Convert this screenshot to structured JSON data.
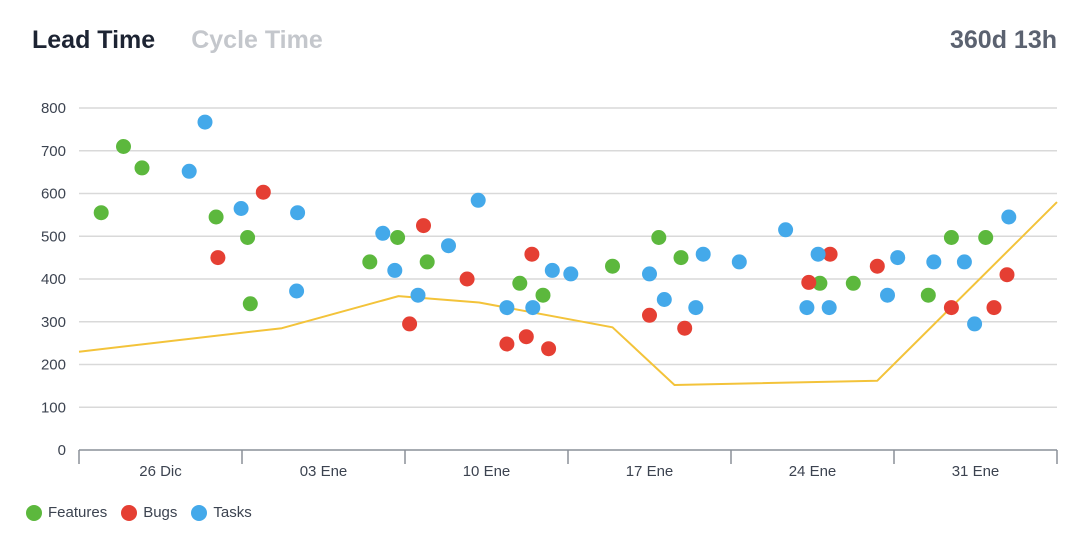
{
  "header": {
    "tabs": [
      {
        "label": "Lead Time",
        "active": true
      },
      {
        "label": "Cycle Time",
        "active": false
      }
    ],
    "total": "360d 13h"
  },
  "colors": {
    "features": "#5cb83d",
    "bugs": "#e53f33",
    "tasks": "#44a9ea",
    "trend": "#f3c33a",
    "grid": "#d9d9d9"
  },
  "legend": [
    {
      "label": "Features",
      "color": "#5cb83d"
    },
    {
      "label": "Bugs",
      "color": "#e53f33"
    },
    {
      "label": "Tasks",
      "color": "#44a9ea"
    }
  ],
  "chart_data": {
    "type": "scatter",
    "x_axis": {
      "type": "date",
      "min": "2023-12-22",
      "max": "2024-02-04",
      "ticks": [
        "26 Dic",
        "03 Ene",
        "10 Ene",
        "17 Ene",
        "24 Ene",
        "31 Ene"
      ]
    },
    "y_axis": {
      "min": 0,
      "max": 800,
      "ticks": [
        0,
        100,
        200,
        300,
        400,
        500,
        600,
        700,
        800
      ]
    },
    "grid": true,
    "legend_position": "bottom-left",
    "series": [
      {
        "name": "Features",
        "color": "#5cb83d",
        "points": [
          [
            "2023-12-23T00:00",
            555
          ],
          [
            "2023-12-24T00:00",
            710
          ],
          [
            "2023-12-24T20:00",
            660
          ],
          [
            "2023-12-28T04:00",
            545
          ],
          [
            "2023-12-29T14:00",
            497
          ],
          [
            "2023-12-29T17:00",
            342
          ],
          [
            "2024-01-04T02:00",
            440
          ],
          [
            "2024-01-05T08:00",
            497
          ],
          [
            "2024-01-06T16:00",
            440
          ],
          [
            "2024-01-10T20:00",
            390
          ],
          [
            "2024-01-11T21:00",
            362
          ],
          [
            "2024-01-15T00:00",
            430
          ],
          [
            "2024-01-17T02:00",
            497
          ],
          [
            "2024-01-18T02:00",
            450
          ],
          [
            "2024-01-24T08:00",
            390
          ],
          [
            "2024-01-25T20:00",
            390
          ],
          [
            "2024-01-29T05:00",
            362
          ],
          [
            "2024-01-30T06:00",
            497
          ],
          [
            "2024-01-31T19:00",
            497
          ]
        ]
      },
      {
        "name": "Bugs",
        "color": "#e53f33",
        "points": [
          [
            "2023-12-28T06:00",
            450
          ],
          [
            "2023-12-30T07:00",
            603
          ],
          [
            "2024-01-05T21:00",
            295
          ],
          [
            "2024-01-06T12:00",
            525
          ],
          [
            "2024-01-08T11:00",
            400
          ],
          [
            "2024-01-10T06:00",
            248
          ],
          [
            "2024-01-11T03:00",
            265
          ],
          [
            "2024-01-11T09:00",
            458
          ],
          [
            "2024-01-12T03:00",
            237
          ],
          [
            "2024-01-16T16:00",
            315
          ],
          [
            "2024-01-18T06:00",
            285
          ],
          [
            "2024-01-23T20:00",
            392
          ],
          [
            "2024-01-24T19:00",
            458
          ],
          [
            "2024-01-26T22:00",
            430
          ],
          [
            "2024-01-30T06:00",
            333
          ],
          [
            "2024-02-01T04:00",
            333
          ],
          [
            "2024-02-01T18:00",
            410
          ]
        ]
      },
      {
        "name": "Tasks",
        "color": "#44a9ea",
        "points": [
          [
            "2023-12-26T23:00",
            652
          ],
          [
            "2023-12-27T16:00",
            767
          ],
          [
            "2023-12-29T07:00",
            565
          ],
          [
            "2023-12-31T19:00",
            372
          ],
          [
            "2023-12-31T20:00",
            555
          ],
          [
            "2024-01-04T16:00",
            507
          ],
          [
            "2024-01-05T05:00",
            420
          ],
          [
            "2024-01-06T06:00",
            362
          ],
          [
            "2024-01-07T15:00",
            478
          ],
          [
            "2024-01-08T23:00",
            584
          ],
          [
            "2024-01-10T06:00",
            333
          ],
          [
            "2024-01-11T10:00",
            333
          ],
          [
            "2024-01-12T07:00",
            420
          ],
          [
            "2024-01-13T03:00",
            412
          ],
          [
            "2024-01-16T16:00",
            412
          ],
          [
            "2024-01-17T08:00",
            352
          ],
          [
            "2024-01-18T18:00",
            333
          ],
          [
            "2024-01-19T02:00",
            458
          ],
          [
            "2024-01-20T17:00",
            440
          ],
          [
            "2024-01-22T19:00",
            515
          ],
          [
            "2024-01-23T18:00",
            333
          ],
          [
            "2024-01-24T06:00",
            458
          ],
          [
            "2024-01-24T18:00",
            333
          ],
          [
            "2024-01-27T09:00",
            362
          ],
          [
            "2024-01-27T20:00",
            450
          ],
          [
            "2024-01-29T11:00",
            440
          ],
          [
            "2024-01-30T20:00",
            440
          ],
          [
            "2024-01-31T07:00",
            295
          ],
          [
            "2024-02-01T20:00",
            545
          ]
        ]
      }
    ],
    "trend_line": {
      "color": "#f3c33a",
      "points": [
        [
          "2023-12-22T00:00",
          230
        ],
        [
          "2023-12-31T03:00",
          285
        ],
        [
          "2024-01-05T09:00",
          360
        ],
        [
          "2024-01-09T00:00",
          345
        ],
        [
          "2024-01-15T00:00",
          287
        ],
        [
          "2024-01-17T19:00",
          152
        ],
        [
          "2024-01-26T22:00",
          162
        ],
        [
          "2024-02-04T00:00",
          580
        ]
      ]
    }
  }
}
